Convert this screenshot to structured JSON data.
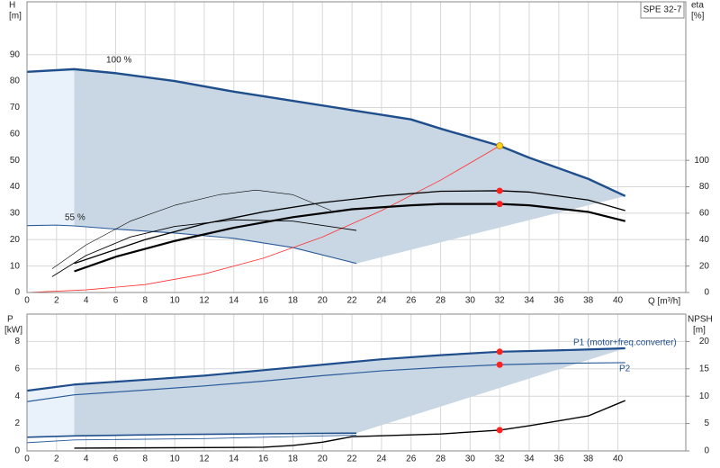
{
  "chart_data": [
    {
      "type": "line",
      "title": "SPE 32-7",
      "x_label": "Q [m³/h]",
      "y_label": "H",
      "y_unit": "[m]",
      "y2_label": "eta",
      "y2_unit": "[%]",
      "annotations": [
        "100 %",
        "55 %"
      ],
      "xlim": [
        0,
        44.6
      ],
      "xticks": [
        0,
        2,
        4,
        6,
        8,
        10,
        12,
        14,
        16,
        18,
        20,
        22,
        24,
        26,
        28,
        30,
        32,
        34,
        36,
        38,
        40
      ],
      "ylim": [
        0,
        110
      ],
      "yticks": [
        0,
        10,
        20,
        30,
        40,
        50,
        60,
        70,
        80,
        90
      ],
      "y2lim": [
        0,
        220
      ],
      "y2ticks": [
        0,
        20,
        40,
        60,
        80,
        100
      ],
      "grid": true,
      "fill_between": [
        0,
        1
      ],
      "fill_color": "#c9d7e4",
      "fill_light": "#e9f1fb",
      "series": [
        {
          "color": "#1f4e8c",
          "width": 2.4,
          "x": [
            0,
            3.2,
            6,
            10,
            14,
            18,
            22,
            26,
            28,
            32,
            34,
            38,
            40.5
          ],
          "values": [
            83.5,
            84.5,
            83,
            80,
            76,
            72.5,
            69,
            65.5,
            62,
            55.5,
            51,
            43,
            36.5
          ]
        },
        {
          "color": "#2a5b9a",
          "width": 1.1,
          "x": [
            0,
            2,
            3.2,
            6,
            10,
            14,
            18,
            22.3
          ],
          "values": [
            25.3,
            25.5,
            25.2,
            24,
            22.5,
            20.5,
            17,
            11
          ]
        },
        {
          "color": "#ff3030",
          "width": 0.8,
          "x": [
            0,
            4,
            8,
            12,
            16,
            20,
            24,
            28,
            32
          ],
          "values": [
            0,
            1,
            3,
            7,
            13,
            21,
            31,
            42.5,
            55.5
          ]
        },
        {
          "color": "#000000",
          "width": 1.3,
          "axis": "y2",
          "x": [
            3.2,
            8,
            12,
            16,
            20,
            24,
            28,
            32,
            34,
            38,
            40.5
          ],
          "values": [
            22,
            40,
            52,
            61,
            68,
            73,
            76.6,
            77,
            76,
            70,
            62
          ]
        },
        {
          "color": "#000000",
          "width": 2.2,
          "axis": "y2",
          "x": [
            3.2,
            6,
            10,
            14,
            18,
            22,
            26,
            28,
            32,
            34,
            38,
            40.5
          ],
          "values": [
            16,
            27,
            39,
            49,
            57,
            63,
            66,
            67,
            67,
            66,
            61,
            54
          ]
        },
        {
          "color": "#000000",
          "width": 0.6,
          "axis": "y2",
          "x": [
            1.7,
            4,
            7,
            10,
            13,
            15.5,
            18,
            20.6
          ],
          "values": [
            18,
            36,
            54,
            66,
            74,
            77.5,
            74,
            62
          ]
        },
        {
          "color": "#000000",
          "width": 0.9,
          "axis": "y2",
          "x": [
            1.7,
            4,
            7,
            10,
            14,
            18,
            22.3
          ],
          "values": [
            12,
            28,
            42,
            50,
            55,
            54,
            47
          ]
        }
      ],
      "points": [
        {
          "x": 32,
          "y": 55.5,
          "color": "#ffd21f"
        },
        {
          "x": 32,
          "y": 77,
          "axis": "y2",
          "color": "#ff2020"
        },
        {
          "x": 32,
          "y": 67,
          "axis": "y2",
          "color": "#ff2020"
        }
      ]
    },
    {
      "type": "line",
      "y_label": "P",
      "y_unit": "[kW]",
      "y2_label": "NPSH",
      "y2_unit": "[m]",
      "xlim": [
        0,
        44.6
      ],
      "xticks": [
        0,
        2,
        4,
        6,
        8,
        10,
        12,
        14,
        16,
        18,
        20,
        22,
        24,
        26,
        28,
        30,
        32,
        34,
        36,
        38,
        40
      ],
      "ylim": [
        0,
        10
      ],
      "yticks": [
        0,
        2,
        4,
        6,
        8
      ],
      "y2lim": [
        0,
        25
      ],
      "y2ticks": [
        0,
        5,
        10,
        15,
        20
      ],
      "grid": true,
      "fill_between": [
        0,
        2
      ],
      "fill_color": "#c9d7e4",
      "fill_light": "#e9f1fb",
      "series": [
        {
          "name": "P1 (motor+freq.converter)",
          "color": "#1f4e8c",
          "width": 2.2,
          "x": [
            0,
            3.2,
            8,
            12,
            16,
            20,
            24,
            28,
            32,
            36,
            40.5
          ],
          "values": [
            4.4,
            4.85,
            5.2,
            5.5,
            5.9,
            6.3,
            6.7,
            7.0,
            7.25,
            7.35,
            7.5
          ]
        },
        {
          "name": "P2",
          "color": "#2a5b9a",
          "width": 1.2,
          "x": [
            0,
            3.2,
            8,
            12,
            16,
            20,
            24,
            28,
            32,
            36,
            40.5
          ],
          "values": [
            3.6,
            4.1,
            4.45,
            4.75,
            5.1,
            5.5,
            5.85,
            6.1,
            6.3,
            6.4,
            6.45
          ]
        },
        {
          "color": "#1f4e8c",
          "width": 1.6,
          "x": [
            0,
            3.2,
            10,
            16,
            22.3
          ],
          "values": [
            1.0,
            1.1,
            1.2,
            1.25,
            1.3
          ]
        },
        {
          "color": "#2a5b9a",
          "width": 0.9,
          "x": [
            0,
            3.2,
            12,
            22.3
          ],
          "values": [
            0.6,
            0.8,
            0.9,
            1.15
          ]
        },
        {
          "color": "#000000",
          "width": 1.4,
          "axis": "y2",
          "x": [
            3.2,
            16,
            18,
            20,
            22,
            28,
            32,
            34,
            38,
            40.5
          ],
          "values": [
            0.5,
            0.66,
            1.0,
            1.6,
            2.6,
            3.1,
            3.8,
            4.6,
            6.4,
            9.2
          ]
        }
      ],
      "points": [
        {
          "x": 32,
          "y": 7.25,
          "color": "#ff2020"
        },
        {
          "x": 32,
          "y": 6.3,
          "color": "#ff2020"
        },
        {
          "x": 32,
          "y": 3.8,
          "axis": "y2",
          "color": "#ff2020"
        }
      ]
    }
  ]
}
